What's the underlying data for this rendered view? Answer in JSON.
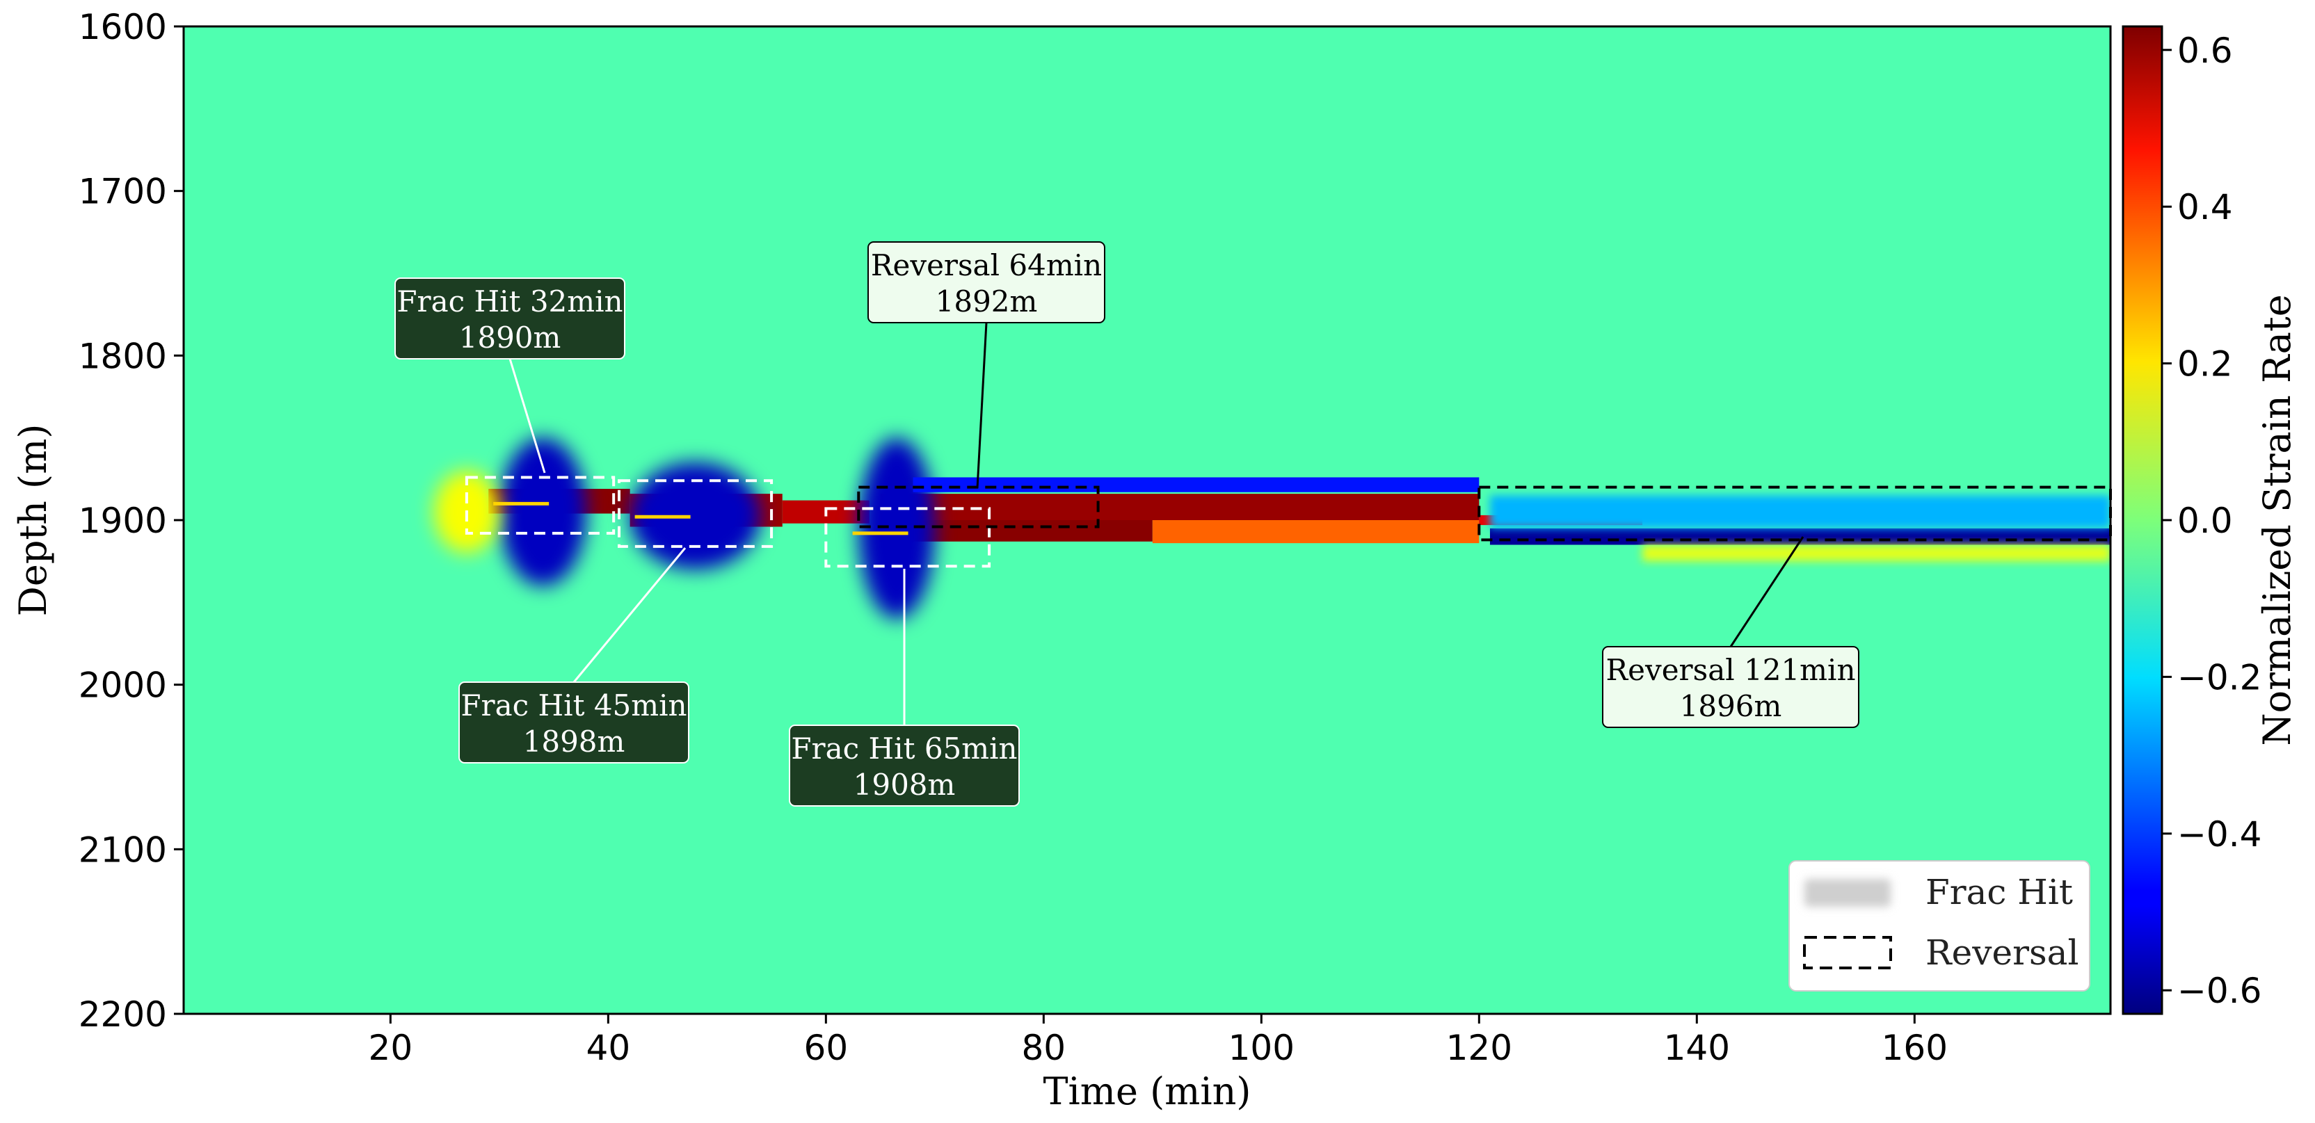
{
  "chart_data": {
    "type": "heatmap",
    "title": "",
    "xlabel": "Time (min)",
    "ylabel": "Depth (m)",
    "xlim": [
      1,
      178
    ],
    "ylim": [
      2200,
      1600
    ],
    "x_ticks": [
      "20",
      "40",
      "60",
      "80",
      "100",
      "120",
      "140",
      "160"
    ],
    "y_ticks": [
      "1600",
      "1700",
      "1800",
      "1900",
      "2000",
      "2100",
      "2200"
    ],
    "colorbar": {
      "label": "Normalized Strain Rate",
      "range": [
        -0.63,
        0.63
      ],
      "ticks": [
        "−0.6",
        "−0.4",
        "−0.2",
        "0.0",
        "0.2",
        "0.4",
        "0.6"
      ],
      "colormap": "jet"
    },
    "background_value": -0.06,
    "features": [
      {
        "kind": "positive band",
        "t": [
          29,
          42
        ],
        "depth": [
          1881,
          1896
        ],
        "value": 0.62
      },
      {
        "kind": "positive band",
        "t": [
          42,
          56
        ],
        "depth": [
          1884,
          1904
        ],
        "value": 0.6
      },
      {
        "kind": "positive band",
        "t": [
          56,
          64
        ],
        "depth": [
          1888,
          1902
        ],
        "value": 0.55
      },
      {
        "kind": "positive band",
        "t": [
          65,
          90
        ],
        "depth": [
          1900,
          1913
        ],
        "value": 0.62
      },
      {
        "kind": "positive band",
        "t": [
          65,
          120
        ],
        "depth": [
          1884,
          1900
        ],
        "value": 0.6
      },
      {
        "kind": "mixed band",
        "t": [
          90,
          120
        ],
        "depth": [
          1900,
          1914
        ],
        "value": 0.35
      },
      {
        "kind": "positive band",
        "t": [
          120,
          135
        ],
        "depth": [
          1897,
          1903
        ],
        "value": 0.5
      },
      {
        "kind": "negative halo",
        "t": [
          30,
          38
        ],
        "depth": [
          1850,
          1940
        ],
        "value": -0.55
      },
      {
        "kind": "negative halo",
        "t": [
          42,
          54
        ],
        "depth": [
          1865,
          1930
        ],
        "value": -0.55
      },
      {
        "kind": "negative halo",
        "t": [
          63,
          70
        ],
        "depth": [
          1850,
          1960
        ],
        "value": -0.55
      },
      {
        "kind": "negative band",
        "t": [
          68,
          120
        ],
        "depth": [
          1874,
          1883
        ],
        "value": -0.45
      },
      {
        "kind": "negative band",
        "t": [
          121,
          178
        ],
        "depth": [
          1905,
          1915
        ],
        "value": -0.6
      },
      {
        "kind": "weak negative band",
        "t": [
          121,
          178
        ],
        "depth": [
          1885,
          1905
        ],
        "value": -0.25
      },
      {
        "kind": "weak positive band",
        "t": [
          135,
          178
        ],
        "depth": [
          1915,
          1925
        ],
        "value": 0.12
      },
      {
        "kind": "weak positive halo",
        "t": [
          24,
          30
        ],
        "depth": [
          1870,
          1920
        ],
        "value": 0.15
      }
    ],
    "annotations": [
      {
        "label": "Frac Hit",
        "text1": "Frac Hit 32min",
        "text2": "1890m",
        "time": 32,
        "depth": 1890,
        "box_t": [
          27,
          40.5
        ],
        "box_d": [
          1874,
          1908
        ]
      },
      {
        "label": "Frac Hit",
        "text1": "Frac Hit 45min",
        "text2": "1898m",
        "time": 45,
        "depth": 1898,
        "box_t": [
          41,
          55
        ],
        "box_d": [
          1876,
          1916
        ]
      },
      {
        "label": "Frac Hit",
        "text1": "Frac Hit 65min",
        "text2": "1908m",
        "time": 65,
        "depth": 1908,
        "box_t": [
          60,
          75
        ],
        "box_d": [
          1893,
          1928
        ]
      },
      {
        "label": "Reversal",
        "text1": "Reversal 64min",
        "text2": "1892m",
        "time": 64,
        "depth": 1892,
        "box_t": [
          63,
          85
        ],
        "box_d": [
          1880,
          1904
        ]
      },
      {
        "label": "Reversal",
        "text1": "Reversal 121min",
        "text2": "1896m",
        "time": 121,
        "depth": 1896,
        "box_t": [
          120,
          178
        ],
        "box_d": [
          1880,
          1912
        ]
      }
    ],
    "legend": {
      "placement": "lower-right",
      "entries": [
        {
          "label": "Frac Hit",
          "style": "shaded"
        },
        {
          "label": "Reversal",
          "style": "dashed"
        }
      ]
    }
  }
}
